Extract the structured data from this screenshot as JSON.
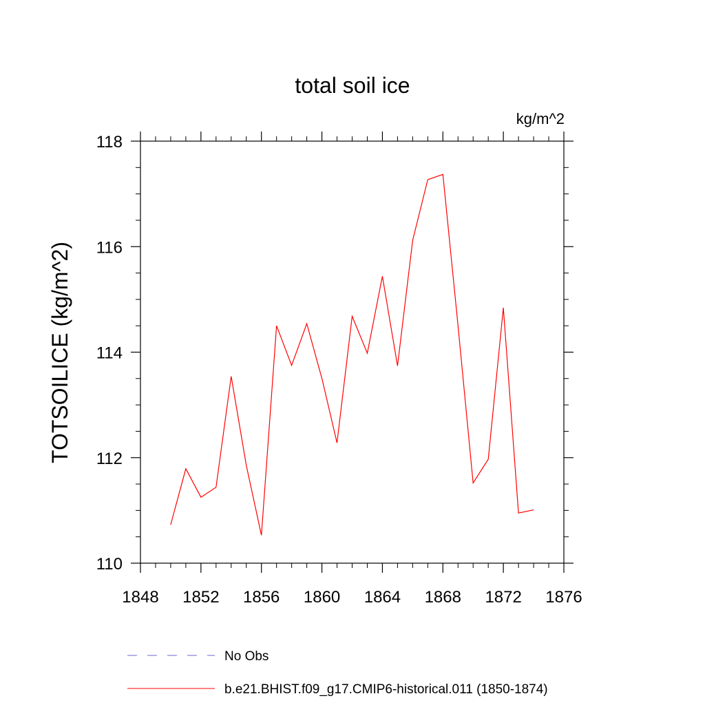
{
  "chart_data": {
    "type": "line",
    "title": "total soil ice",
    "units_label": "kg/m^2",
    "ylabel": "TOTSOILICE  (kg/m^2)",
    "xlabel": "",
    "xlim": [
      1848,
      1876
    ],
    "ylim": [
      110,
      118
    ],
    "xticks": [
      1848,
      1852,
      1856,
      1860,
      1864,
      1868,
      1872,
      1876
    ],
    "yticks": [
      110,
      112,
      114,
      116,
      118
    ],
    "x_minor_step": 1,
    "y_minor_step": 0.5,
    "grid": false,
    "legend_position": "bottom",
    "series": [
      {
        "name": "b.e21.BHIST.f09_g17.CMIP6-historical.011 (1850-1874)",
        "color": "#ff0000",
        "style": "solid",
        "x": [
          1850,
          1851,
          1852,
          1853,
          1854,
          1855,
          1856,
          1857,
          1858,
          1859,
          1860,
          1861,
          1862,
          1863,
          1864,
          1865,
          1866,
          1867,
          1868,
          1869,
          1870,
          1871,
          1872,
          1873,
          1874
        ],
        "values": [
          110.73,
          111.79,
          111.25,
          111.44,
          113.54,
          111.85,
          110.53,
          114.5,
          113.75,
          114.54,
          113.5,
          112.28,
          114.68,
          113.98,
          115.44,
          113.74,
          116.12,
          117.27,
          117.37,
          114.5,
          111.52,
          111.97,
          114.84,
          110.95,
          111.01
        ]
      }
    ],
    "legend": [
      {
        "label": "No Obs",
        "color": "#6a6ad0",
        "style": "dashed"
      },
      {
        "label": "b.e21.BHIST.f09_g17.CMIP6-historical.011 (1850-1874)",
        "color": "#ff0000",
        "style": "solid"
      }
    ]
  }
}
